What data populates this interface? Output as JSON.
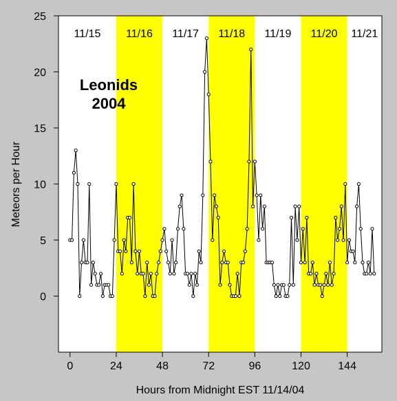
{
  "chart_data": {
    "type": "line",
    "title_lines": [
      "Leonids",
      "2004"
    ],
    "xlabel": "Hours from Midnight EST 11/14/04",
    "ylabel": "Meteors per Hour",
    "xlim": [
      -6,
      162
    ],
    "ylim": [
      -5,
      25
    ],
    "x_ticks": [
      0,
      24,
      48,
      72,
      96,
      120,
      144
    ],
    "y_ticks": [
      0,
      5,
      10,
      15,
      20,
      25
    ],
    "grid": false,
    "colors": {
      "background": "#ffffff",
      "highlight": "#ffff00",
      "line": "#000000",
      "outer": "#c6c6c6"
    },
    "days": [
      {
        "label": "11/15",
        "start": -6,
        "end": 24,
        "highlight": false
      },
      {
        "label": "11/16",
        "start": 24,
        "end": 48,
        "highlight": true
      },
      {
        "label": "11/17",
        "start": 48,
        "end": 72,
        "highlight": false
      },
      {
        "label": "11/18",
        "start": 72,
        "end": 96,
        "highlight": true
      },
      {
        "label": "11/19",
        "start": 96,
        "end": 120,
        "highlight": false
      },
      {
        "label": "11/20",
        "start": 120,
        "end": 144,
        "highlight": true
      },
      {
        "label": "11/21",
        "start": 144,
        "end": 162,
        "highlight": false
      }
    ],
    "series": [
      {
        "x": [
          0,
          1,
          2,
          3,
          4,
          5,
          6,
          7,
          8,
          9,
          10,
          11,
          12,
          13,
          14,
          15,
          16,
          17,
          18,
          19,
          20,
          21,
          22,
          23,
          24,
          25,
          26,
          27,
          28,
          29,
          30,
          31,
          32,
          33,
          34,
          35,
          36,
          37,
          38,
          39,
          40,
          41,
          42,
          43,
          44,
          45,
          46,
          47,
          48,
          49,
          50,
          51,
          52,
          53,
          54,
          55,
          56,
          57,
          58,
          59,
          60,
          61,
          62,
          63,
          64,
          65,
          66,
          67,
          68,
          69,
          70,
          71,
          72,
          73,
          74,
          75,
          76,
          77,
          78,
          79,
          80,
          81,
          82,
          83,
          84,
          85,
          86,
          87,
          88,
          89,
          90,
          91,
          92,
          93,
          94,
          95,
          96,
          97,
          98,
          99,
          100,
          101,
          102,
          103,
          104,
          105,
          106,
          107,
          108,
          109,
          110,
          111,
          112,
          113,
          114,
          115,
          116,
          117,
          118,
          119,
          120,
          121,
          122,
          123,
          124,
          125,
          126,
          127,
          128,
          129,
          130,
          131,
          132,
          133,
          134,
          135,
          136,
          137,
          138,
          139,
          140,
          141,
          142,
          143,
          144,
          145,
          146,
          147,
          148,
          149,
          150,
          151,
          152,
          153,
          154,
          155,
          156,
          157,
          158
        ],
        "y": [
          5,
          5,
          11,
          13,
          10,
          0,
          3,
          5,
          3,
          3,
          10,
          1,
          3,
          2,
          1,
          1,
          2,
          0,
          1,
          1,
          1,
          0,
          0,
          5,
          10,
          4,
          4,
          2,
          5,
          4,
          7,
          7,
          3,
          10,
          4,
          2,
          4,
          2,
          2,
          0,
          3,
          1,
          2,
          0,
          0,
          2,
          3,
          4,
          5,
          6,
          4,
          3,
          2,
          5,
          2,
          3,
          6,
          8,
          9,
          6,
          2,
          2,
          1,
          2,
          0,
          2,
          1,
          4,
          3,
          9,
          20,
          23,
          18,
          12,
          5,
          9,
          8,
          7,
          1,
          3,
          4,
          3,
          3,
          1,
          0,
          0,
          0,
          2,
          0,
          3,
          3,
          4,
          6,
          12,
          22,
          8,
          12,
          9,
          5,
          9,
          6,
          8,
          3,
          3,
          3,
          3,
          1,
          0,
          1,
          0,
          1,
          1,
          0,
          0,
          1,
          7,
          1,
          8,
          5,
          8,
          3,
          6,
          3,
          7,
          2,
          2,
          3,
          1,
          2,
          1,
          1,
          0,
          1,
          2,
          1,
          3,
          1,
          2,
          7,
          5,
          6,
          8,
          5,
          10,
          3,
          5,
          4,
          4,
          3,
          8,
          10,
          6,
          3,
          2,
          2,
          3,
          2,
          6,
          2
        ],
        "x_shift": 0
      }
    ]
  }
}
